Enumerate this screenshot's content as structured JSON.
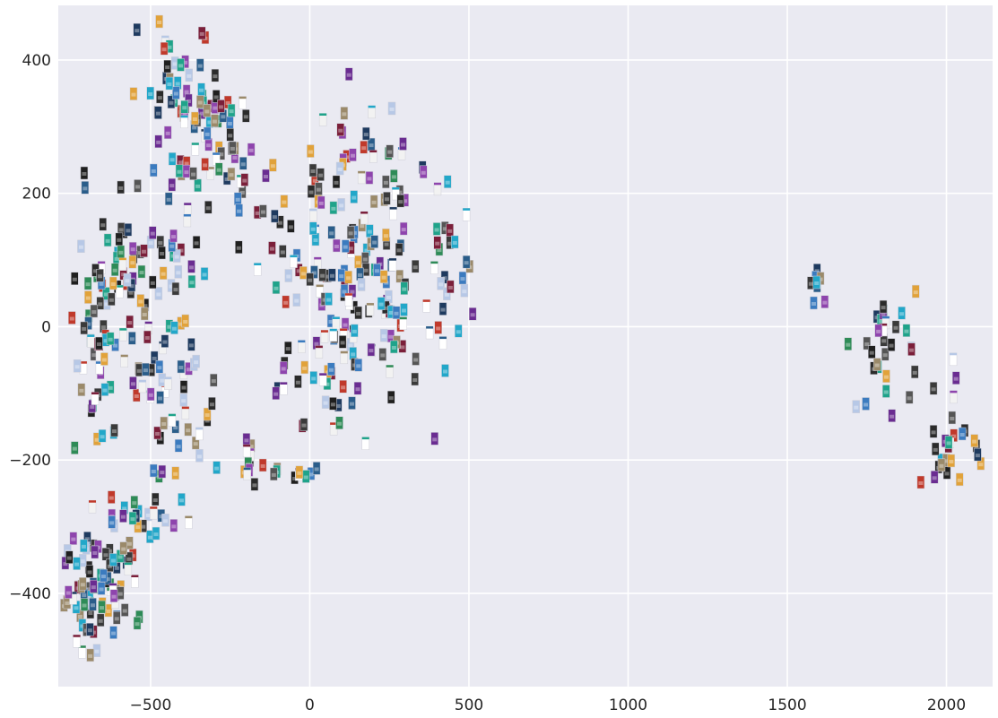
{
  "chart_data": {
    "type": "scatter",
    "title": "",
    "xlabel": "",
    "ylabel": "",
    "xlim": [
      -790,
      2145
    ],
    "ylim": [
      -540,
      482
    ],
    "xticks": [
      -500,
      0,
      500,
      1000,
      1500,
      2000
    ],
    "yticks": [
      -400,
      -200,
      0,
      200,
      400
    ],
    "xtick_labels": [
      "−500",
      "0",
      "500",
      "1000",
      "1500",
      "2000"
    ],
    "ytick_labels": [
      "−400",
      "−200",
      "0",
      "200",
      "400"
    ],
    "grid": true,
    "legend": "none",
    "colors": {
      "background": "#eaeaf2",
      "grid": "#ffffff",
      "thumbnails": [
        "#ffffff",
        "#f2f2f2",
        "#1f1f1f",
        "#2b2b2b",
        "#3a3a3a",
        "#555555",
        "#1e3a5f",
        "#2a5d8a",
        "#3b7bbf",
        "#22a7c9",
        "#1fa38a",
        "#2e8b57",
        "#6a2c91",
        "#8e44ad",
        "#7b1f3a",
        "#c0392b",
        "#e1a23a",
        "#9b8a6a",
        "#b7c8e6"
      ]
    },
    "clusters": [
      {
        "x": -400,
        "y": 360,
        "sx": 70,
        "sy": 55,
        "n": 55,
        "rot": -0.9
      },
      {
        "x": -260,
        "y": 260,
        "sx": 55,
        "sy": 45,
        "n": 40,
        "rot": -0.6
      },
      {
        "x": -600,
        "y": 70,
        "sx": 85,
        "sy": 70,
        "n": 70,
        "rot": -0.2
      },
      {
        "x": -420,
        "y": 130,
        "sx": 60,
        "sy": 60,
        "n": 25,
        "rot": 0
      },
      {
        "x": -670,
        "y": -80,
        "sx": 40,
        "sy": 55,
        "n": 30,
        "rot": 0
      },
      {
        "x": -420,
        "y": -110,
        "sx": 60,
        "sy": 50,
        "n": 38,
        "rot": 0
      },
      {
        "x": -550,
        "y": -300,
        "sx": 70,
        "sy": 40,
        "n": 25,
        "rot": 0
      },
      {
        "x": -690,
        "y": -400,
        "sx": 45,
        "sy": 55,
        "n": 55,
        "rot": 0.4
      },
      {
        "x": -620,
        "y": -380,
        "sx": 50,
        "sy": 45,
        "n": 30,
        "rot": 0
      },
      {
        "x": -90,
        "y": 140,
        "sx": 50,
        "sy": 45,
        "n": 15,
        "rot": 0
      },
      {
        "x": 180,
        "y": 170,
        "sx": 100,
        "sy": 80,
        "n": 90,
        "rot": -0.4
      },
      {
        "x": 150,
        "y": 20,
        "sx": 120,
        "sy": 55,
        "n": 60,
        "rot": -0.2
      },
      {
        "x": 40,
        "y": -80,
        "sx": 90,
        "sy": 50,
        "n": 35,
        "rot": 0
      },
      {
        "x": -180,
        "y": -210,
        "sx": 30,
        "sy": 20,
        "n": 12,
        "rot": 0
      },
      {
        "x": -40,
        "y": -220,
        "sx": 35,
        "sy": 12,
        "n": 8,
        "rot": 0
      },
      {
        "x": 450,
        "y": 100,
        "sx": 50,
        "sy": 70,
        "n": 25,
        "rot": 0
      },
      {
        "x": 1590,
        "y": 65,
        "sx": 20,
        "sy": 20,
        "n": 8,
        "rot": 0
      },
      {
        "x": 1800,
        "y": -40,
        "sx": 45,
        "sy": 45,
        "n": 30,
        "rot": 0.4
      },
      {
        "x": 2030,
        "y": -170,
        "sx": 50,
        "sy": 40,
        "n": 28,
        "rot": 0.5
      }
    ]
  }
}
